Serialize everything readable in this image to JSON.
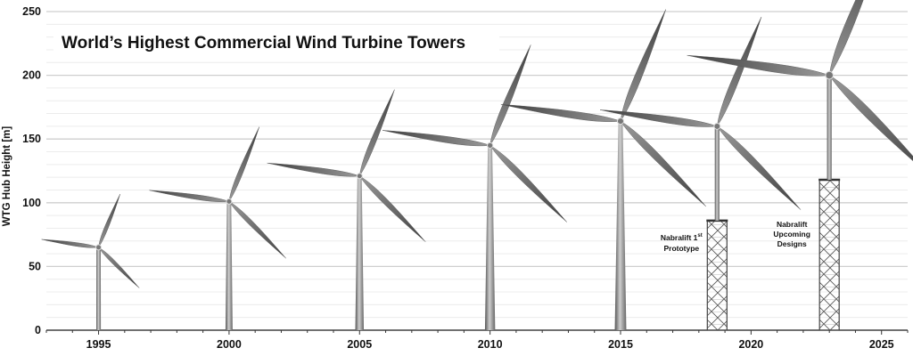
{
  "chart_data": {
    "type": "scatter",
    "title": "World’s Highest Commercial Wind Turbine Towers",
    "ylabel": "WTG Hub Height [m]",
    "xlabel": "",
    "xlim": [
      1993,
      2026
    ],
    "ylim": [
      0,
      250
    ],
    "xticks": [
      1995,
      2000,
      2005,
      2010,
      2015,
      2020,
      2025
    ],
    "yticks": [
      0,
      50,
      100,
      150,
      200,
      250
    ],
    "grid": "horizontal",
    "series": [
      {
        "points": [
          {
            "x": 1995,
            "y": 65
          },
          {
            "x": 2000,
            "y": 101
          },
          {
            "x": 2005,
            "y": 121
          },
          {
            "x": 2010,
            "y": 145
          },
          {
            "x": 2015,
            "y": 164
          }
        ]
      },
      {
        "points": [
          {
            "x": 2018.7,
            "y": 160,
            "lattice_top": 86
          }
        ],
        "label": [
          "Nabralift 1",
          "st",
          "Prototype"
        ]
      },
      {
        "points": [
          {
            "x": 2023,
            "y": 200,
            "lattice_top": 118
          }
        ],
        "label": [
          "Nabralift",
          "Upcoming",
          "Designs"
        ]
      }
    ]
  }
}
